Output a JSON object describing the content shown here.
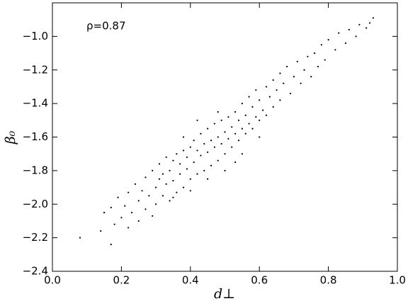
{
  "chart_data": {
    "type": "scatter",
    "annotation": "ρ=0.87",
    "xlabel": "d⊥",
    "ylabel": "β₀",
    "color": "#000000",
    "xlim": [
      0,
      1
    ],
    "ylim": [
      -2.4,
      -0.8
    ],
    "xticks": [
      {
        "value": 0,
        "label": "0.0"
      },
      0.2,
      0.4,
      0.6,
      0.8,
      {
        "value": 1,
        "label": "1.0"
      }
    ],
    "yticks": [
      {
        "value": -2.4,
        "label": "−2.4"
      },
      {
        "value": -2.2,
        "label": "−2.2"
      },
      {
        "value": -2,
        "label": "−2.0"
      },
      {
        "value": -1.8,
        "label": "−1.8"
      },
      {
        "value": -1.6,
        "label": "−1.6"
      },
      {
        "value": -1.4,
        "label": "−1.4"
      },
      {
        "value": -1.2,
        "label": "−1.2"
      },
      {
        "value": -1,
        "label": "−1.0"
      }
    ],
    "x": [
      0.08,
      0.14,
      0.15,
      0.17,
      0.17,
      0.18,
      0.19,
      0.2,
      0.21,
      0.22,
      0.22,
      0.23,
      0.24,
      0.25,
      0.25,
      0.26,
      0.27,
      0.27,
      0.28,
      0.29,
      0.29,
      0.3,
      0.3,
      0.31,
      0.31,
      0.32,
      0.32,
      0.33,
      0.33,
      0.34,
      0.34,
      0.35,
      0.35,
      0.36,
      0.36,
      0.37,
      0.37,
      0.38,
      0.38,
      0.39,
      0.39,
      0.4,
      0.4,
      0.41,
      0.41,
      0.42,
      0.42,
      0.43,
      0.43,
      0.44,
      0.44,
      0.45,
      0.45,
      0.46,
      0.46,
      0.47,
      0.47,
      0.48,
      0.48,
      0.49,
      0.49,
      0.5,
      0.5,
      0.51,
      0.51,
      0.52,
      0.52,
      0.53,
      0.53,
      0.54,
      0.54,
      0.55,
      0.55,
      0.56,
      0.56,
      0.57,
      0.57,
      0.58,
      0.58,
      0.59,
      0.59,
      0.6,
      0.6,
      0.61,
      0.62,
      0.62,
      0.63,
      0.64,
      0.64,
      0.65,
      0.66,
      0.66,
      0.67,
      0.68,
      0.69,
      0.7,
      0.71,
      0.72,
      0.73,
      0.74,
      0.75,
      0.76,
      0.77,
      0.78,
      0.79,
      0.8,
      0.82,
      0.83,
      0.85,
      0.86,
      0.88,
      0.89,
      0.91,
      0.93,
      0.92,
      0.38,
      0.45,
      0.5,
      0.35,
      0.42,
      0.55,
      0.6,
      0.48,
      0.4,
      0.53
    ],
    "values": [
      -2.2,
      -2.16,
      -2.05,
      -2.24,
      -2.02,
      -2.12,
      -1.96,
      -2.08,
      -2.01,
      -2.14,
      -1.93,
      -2.05,
      -1.88,
      -1.98,
      -2.1,
      -1.92,
      -2.03,
      -1.84,
      -1.95,
      -2.07,
      -1.8,
      -1.9,
      -2,
      -1.85,
      -1.76,
      -1.95,
      -1.82,
      -1.88,
      -1.72,
      -1.98,
      -1.8,
      -1.86,
      -1.74,
      -1.93,
      -1.7,
      -1.82,
      -1.76,
      -1.9,
      -1.68,
      -1.79,
      -1.72,
      -1.85,
      -1.66,
      -1.75,
      -1.62,
      -1.82,
      -1.68,
      -1.71,
      -1.58,
      -1.8,
      -1.64,
      -1.69,
      -1.55,
      -1.77,
      -1.62,
      -1.66,
      -1.52,
      -1.74,
      -1.6,
      -1.64,
      -1.5,
      -1.7,
      -1.57,
      -1.61,
      -1.48,
      -1.66,
      -1.54,
      -1.58,
      -1.45,
      -1.62,
      -1.5,
      -1.55,
      -1.4,
      -1.58,
      -1.47,
      -1.52,
      -1.36,
      -1.55,
      -1.42,
      -1.48,
      -1.32,
      -1.5,
      -1.38,
      -1.44,
      -1.3,
      -1.47,
      -1.36,
      -1.26,
      -1.42,
      -1.32,
      -1.22,
      -1.38,
      -1.28,
      -1.18,
      -1.34,
      -1.24,
      -1.15,
      -1.28,
      -1.2,
      -1.12,
      -1.24,
      -1.1,
      -1.18,
      -1.05,
      -1.14,
      -1.02,
      -1.08,
      -0.98,
      -1.04,
      -0.96,
      -1,
      -0.93,
      -0.95,
      -0.89,
      -0.92,
      -1.6,
      -1.85,
      -1.8,
      -1.96,
      -1.5,
      -1.7,
      -1.6,
      -1.45,
      -1.92,
      -1.75
    ]
  }
}
